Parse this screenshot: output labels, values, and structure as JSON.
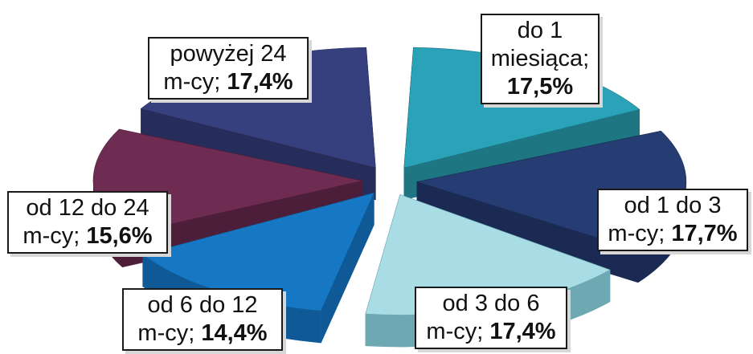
{
  "chart_data": {
    "type": "pie",
    "style": "3d-exploded",
    "title": "",
    "slices": [
      {
        "label_line1": "do 1",
        "label_line2": "miesiąca;",
        "value_text": "17,5%",
        "value": 17.5,
        "color": "#2aa3b8",
        "side": "#1f7683"
      },
      {
        "label_line1": "od 1 do 3",
        "label_line2": "m-cy;",
        "value_text": "17,7%",
        "value": 17.7,
        "color": "#263d73",
        "side": "#1a2a52"
      },
      {
        "label_line1": "od 3 do 6",
        "label_line2": "m-cy;",
        "value_text": "17,4%",
        "value": 17.4,
        "color": "#a9dde6",
        "side": "#6ea8b3"
      },
      {
        "label_line1": "od 6 do 12",
        "label_line2": "m-cy;",
        "value_text": "14,4%",
        "value": 14.4,
        "color": "#1678c4",
        "side": "#0f5a96"
      },
      {
        "label_line1": "od 12 do 24",
        "label_line2": "m-cy;",
        "value_text": "15,6%",
        "value": 15.6,
        "color": "#6f2c52",
        "side": "#4d1e39"
      },
      {
        "label_line1": "powyżej 24",
        "label_line2": "m-cy;",
        "value_text": "17,4%",
        "value": 17.4,
        "color": "#37407e",
        "side": "#262d5a"
      }
    ]
  }
}
